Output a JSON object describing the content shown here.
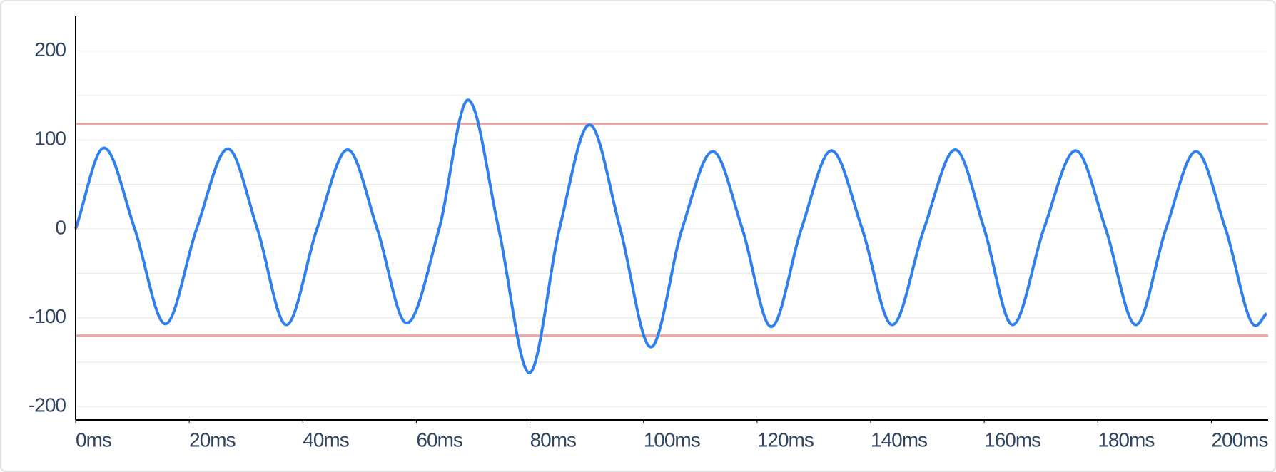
{
  "chart_data": {
    "type": "line",
    "x": [
      0,
      5.0,
      10.4,
      15.8,
      21.3,
      26.8,
      32.0,
      37.1,
      42.5,
      47.9,
      53.1,
      58.3,
      64.0,
      69.1,
      74.5,
      79.9,
      85.2,
      90.5,
      95.9,
      101.3,
      106.8,
      112.2,
      117.4,
      122.5,
      127.8,
      133.1,
      138.5,
      143.8,
      149.4,
      154.9,
      160.0,
      165.0,
      170.5,
      176.1,
      181.4,
      186.7,
      192.0,
      197.3,
      202.5,
      207.8,
      209.7
    ],
    "series": [
      {
        "color": "#2f80ed",
        "values": [
          0,
          91,
          0,
          -107,
          0,
          90,
          0,
          -108,
          0,
          89,
          0,
          -106,
          0,
          145,
          0,
          -162,
          0,
          117,
          0,
          -133,
          0,
          87,
          0,
          -110,
          0,
          88,
          0,
          -108,
          0,
          89,
          0,
          -108,
          0,
          88,
          0,
          -108,
          0,
          87,
          0,
          -109,
          -95
        ]
      }
    ],
    "thresholds": [
      118,
      -120
    ],
    "threshold_color": "#f4a3a3",
    "xlim": [
      0,
      210
    ],
    "xticks": [
      {
        "value": 0,
        "label": "0ms"
      },
      {
        "value": 20,
        "label": "20ms"
      },
      {
        "value": 40,
        "label": "40ms"
      },
      {
        "value": 60,
        "label": "60ms"
      },
      {
        "value": 80,
        "label": "80ms"
      },
      {
        "value": 100,
        "label": "100ms"
      },
      {
        "value": 120,
        "label": "120ms"
      },
      {
        "value": 140,
        "label": "140ms"
      },
      {
        "value": 160,
        "label": "160ms"
      },
      {
        "value": 180,
        "label": "180ms"
      },
      {
        "value": 200,
        "label": "200ms"
      }
    ],
    "ylim": [
      -215,
      239
    ],
    "yticks": [
      -200,
      -100,
      0,
      100,
      200
    ],
    "minor_yticks": [
      -150,
      -50,
      50,
      150
    ],
    "grid": true
  }
}
